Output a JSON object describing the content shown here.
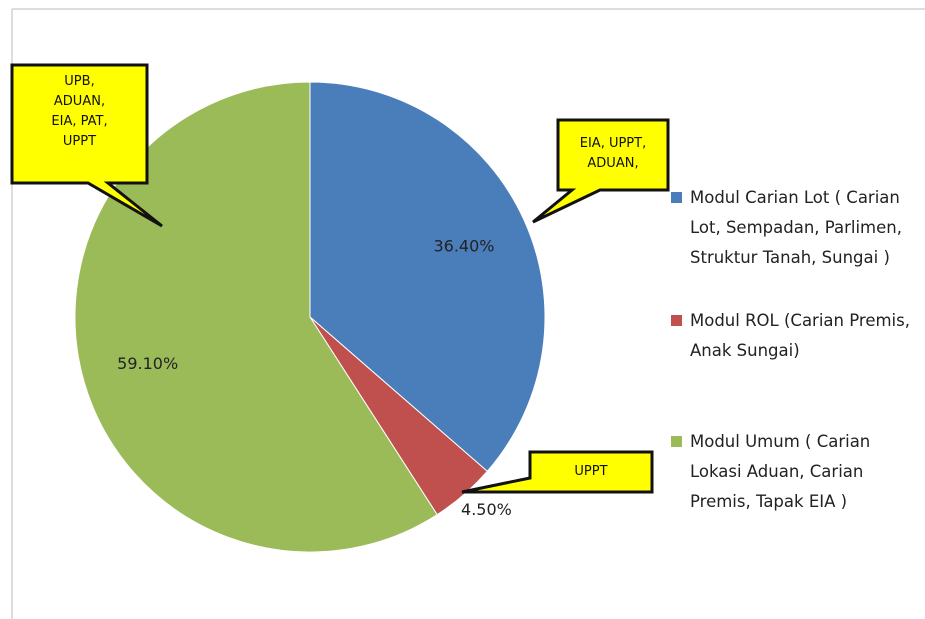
{
  "chart_data": {
    "type": "pie",
    "categories": [
      "Modul Carian Lot ( Carian Lot, Sempadan, Parlimen, Struktur Tanah, Sungai )",
      "Modul ROL (Carian Premis, Anak Sungai)",
      "Modul Umum ( Carian Lokasi Aduan, Carian Premis, Tapak EIA )"
    ],
    "values": [
      36.4,
      4.5,
      59.1
    ],
    "value_labels": [
      "36.40%",
      "4.50%",
      "59.10%"
    ],
    "colors": [
      "#4a7ebb",
      "#c0504d",
      "#9bbb59"
    ],
    "legend": "right",
    "annotations": [
      "UPB, ADUAN, EIA, PAT, UPPT",
      "EIA, UPPT, ADUAN,",
      "UPPT"
    ]
  }
}
